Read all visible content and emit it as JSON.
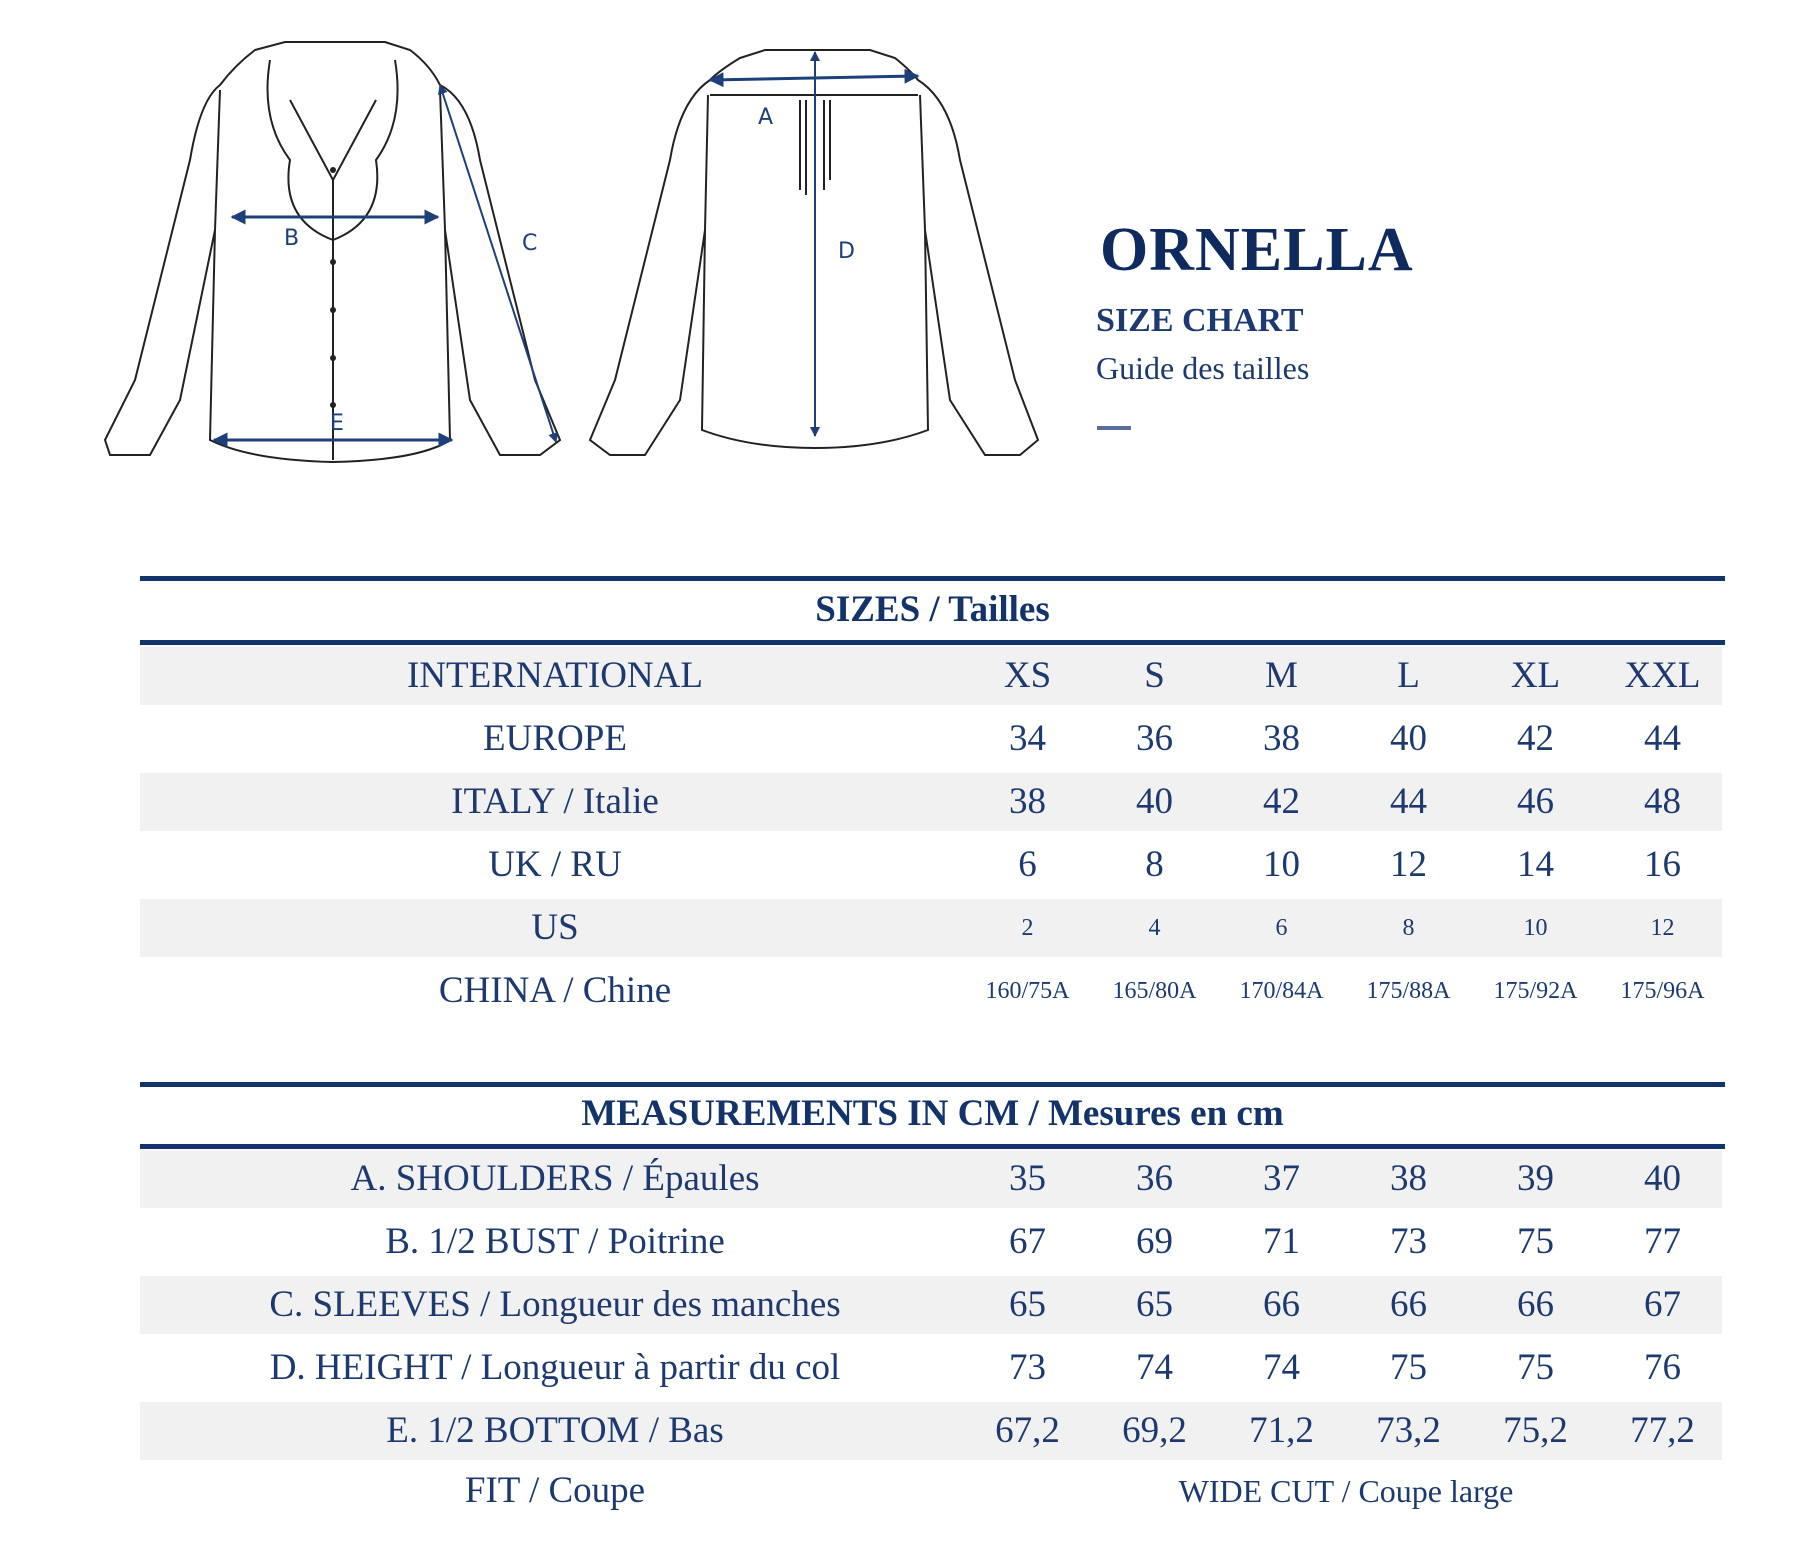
{
  "header": {
    "title": "ORNELLA",
    "subtitle": "SIZE CHART",
    "subtitle_fr": "Guide des tailles"
  },
  "diagram": {
    "labels": {
      "a": "A",
      "b": "B",
      "c": "C",
      "d": "D",
      "e": "E"
    }
  },
  "colors": {
    "navy": "#13336b",
    "row_shade": "#f1f1f1"
  },
  "sizes": {
    "heading": "SIZES / Tailles",
    "rows": [
      {
        "label": "INTERNATIONAL",
        "values": [
          "XS",
          "S",
          "M",
          "L",
          "XL",
          "XXL"
        ]
      },
      {
        "label": "EUROPE",
        "values": [
          "34",
          "36",
          "38",
          "40",
          "42",
          "44"
        ]
      },
      {
        "label": "ITALY / Italie",
        "values": [
          "38",
          "40",
          "42",
          "44",
          "46",
          "48"
        ]
      },
      {
        "label": "UK / RU",
        "values": [
          "6",
          "8",
          "10",
          "12",
          "14",
          "16"
        ]
      },
      {
        "label": "US",
        "values": [
          "2",
          "4",
          "6",
          "8",
          "10",
          "12"
        ]
      },
      {
        "label": "CHINA / Chine",
        "values": [
          "160/75A",
          "165/80A",
          "170/84A",
          "175/88A",
          "175/92A",
          "175/96A"
        ]
      }
    ]
  },
  "measurements": {
    "heading": "MEASUREMENTS IN CM / Mesures en cm",
    "rows": [
      {
        "label": "A. SHOULDERS / Épaules",
        "values": [
          "35",
          "36",
          "37",
          "38",
          "39",
          "40"
        ]
      },
      {
        "label": "B. 1/2 BUST / Poitrine",
        "values": [
          "67",
          "69",
          "71",
          "73",
          "75",
          "77"
        ]
      },
      {
        "label": "C. SLEEVES / Longueur des manches",
        "values": [
          "65",
          "65",
          "66",
          "66",
          "66",
          "67"
        ]
      },
      {
        "label": "D. HEIGHT / Longueur à partir du col",
        "values": [
          "73",
          "74",
          "74",
          "75",
          "75",
          "76"
        ]
      },
      {
        "label": "E. 1/2 BOTTOM / Bas",
        "values": [
          "67,2",
          "69,2",
          "71,2",
          "73,2",
          "75,2",
          "77,2"
        ]
      }
    ],
    "fit": {
      "label": "FIT / Coupe",
      "value": "WIDE CUT / Coupe large"
    }
  }
}
